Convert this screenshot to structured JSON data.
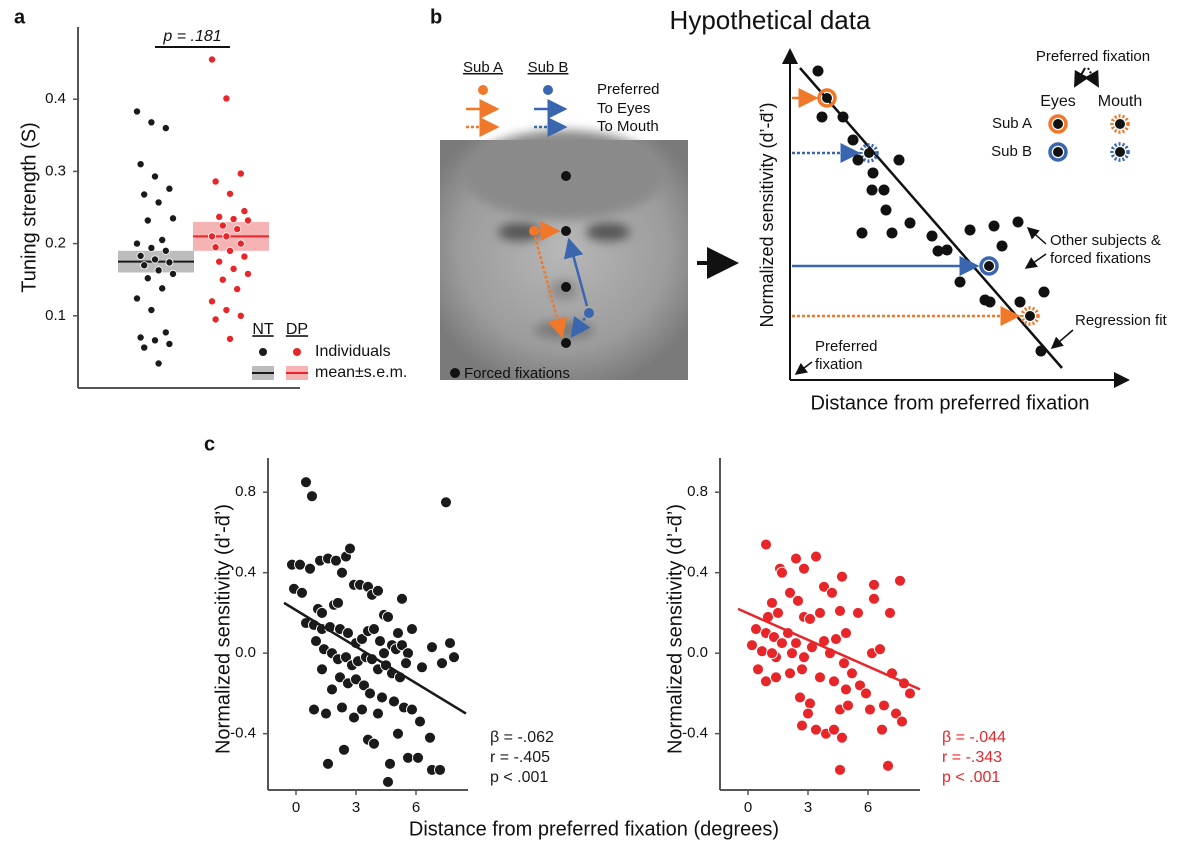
{
  "panel_labels": [
    "a",
    "b",
    "c"
  ],
  "chart_data": [
    {
      "type": "strip",
      "ylabel": "Tuning strength (S)",
      "ylim": [
        0,
        0.5
      ],
      "yticks": [
        0.1,
        0.2,
        0.3,
        0.4
      ],
      "annotation": "p = .181",
      "legend_items": [
        "Individuals",
        "mean±s.e.m."
      ],
      "series": [
        {
          "name": "NT",
          "color": "#1a1a1a",
          "band_color": "#bdbdbd",
          "mean": 0.175,
          "sem": 0.015,
          "values": [
            0.383,
            0.368,
            0.36,
            0.31,
            0.293,
            0.276,
            0.268,
            0.257,
            0.235,
            0.232,
            0.205,
            0.2,
            0.194,
            0.19,
            0.183,
            0.178,
            0.174,
            0.17,
            0.163,
            0.158,
            0.152,
            0.138,
            0.124,
            0.108,
            0.077,
            0.07,
            0.066,
            0.061,
            0.056,
            0.034
          ]
        },
        {
          "name": "DP",
          "color": "#e8262a",
          "band_color": "#f6b3b4",
          "mean": 0.21,
          "sem": 0.02,
          "values": [
            0.455,
            0.401,
            0.297,
            0.286,
            0.269,
            0.245,
            0.237,
            0.234,
            0.232,
            0.225,
            0.22,
            0.21,
            0.21,
            0.2,
            0.195,
            0.19,
            0.182,
            0.175,
            0.165,
            0.158,
            0.15,
            0.137,
            0.12,
            0.108,
            0.1,
            0.095,
            0.068
          ]
        }
      ]
    },
    {
      "type": "scatter",
      "ylabel": "Normalized sensitivity (d’-d̄’)",
      "color": "#1a1a1a",
      "xlim": [
        -1.4,
        8.6
      ],
      "xticks": [
        0,
        3,
        6
      ],
      "ylim": [
        -0.68,
        0.97
      ],
      "yticks": [
        -0.4,
        {
          "value": 0,
          "label": "0.0"
        },
        0.4,
        0.8
      ],
      "stats": [
        "β = -.062",
        "r = -.405",
        "p <  .001"
      ],
      "fit_x": [
        -0.6,
        8.5
      ],
      "fit_y": [
        0.25,
        -0.3
      ],
      "x": [
        0.5,
        0.8,
        -0.2,
        0.2,
        0.7,
        1.2,
        1.6,
        2,
        2.5,
        2.7,
        2.3,
        2.9,
        3.2,
        -0.1,
        0.3,
        1.1,
        1.3,
        1.9,
        2.1,
        3.6,
        3.8,
        4.1,
        4.4,
        4.6,
        5.3,
        5.1,
        0.5,
        0.9,
        1.3,
        1.7,
        2.2,
        2.6,
        3,
        3.3,
        3.6,
        3.9,
        4.2,
        4.4,
        4.8,
        5,
        5.3,
        5.6,
        1,
        1.4,
        1.8,
        2.1,
        2.5,
        2.8,
        3.1,
        3.5,
        3.8,
        4.1,
        4.5,
        4.8,
        5.2,
        5.5,
        2.2,
        2.6,
        3,
        3.4,
        3.7,
        4.3,
        4.9,
        5.4,
        1.3,
        1.8,
        0.9,
        1.5,
        2.3,
        2.9,
        3.3,
        4.1,
        5.8,
        6.2,
        5.1,
        3.6,
        3.9,
        2.4,
        6.7,
        5.6,
        4.7,
        6.1,
        6.8,
        7.2,
        4.6,
        6.8,
        7.3,
        7.7,
        7.9,
        6.3,
        7.5,
        1.6,
        5.8
      ],
      "values": [
        0.85,
        0.78,
        0.44,
        0.44,
        0.42,
        0.46,
        0.47,
        0.46,
        0.48,
        0.52,
        0.4,
        0.34,
        0.34,
        0.32,
        0.3,
        0.22,
        0.2,
        0.24,
        0.25,
        0.33,
        0.29,
        0.31,
        0.19,
        0.18,
        0.27,
        0.1,
        0.15,
        0.14,
        0.12,
        0.13,
        0.12,
        0.1,
        0.05,
        0.07,
        0.11,
        0.12,
        0.06,
        0,
        0.04,
        0.02,
        0.04,
        0,
        0.06,
        0.02,
        0,
        -0.03,
        -0.02,
        -0.06,
        -0.04,
        -0.02,
        -0.03,
        -0.08,
        -0.06,
        -0.1,
        -0.12,
        -0.05,
        -0.12,
        -0.15,
        -0.13,
        -0.16,
        -0.2,
        -0.22,
        -0.24,
        -0.27,
        -0.08,
        -0.18,
        -0.28,
        -0.3,
        -0.27,
        -0.32,
        -0.28,
        -0.3,
        -0.28,
        -0.34,
        -0.4,
        -0.43,
        -0.45,
        -0.48,
        -0.42,
        -0.52,
        -0.55,
        -0.52,
        -0.58,
        -0.58,
        -0.64,
        0.03,
        -0.05,
        0.05,
        -0.02,
        -0.07,
        0.75,
        -0.55,
        0.12
      ]
    },
    {
      "type": "scatter",
      "ylabel": "Normalized sensitivity (d’-d̄’)",
      "color": "#e8262a",
      "xlim": [
        -1.4,
        8.6
      ],
      "xticks": [
        0,
        3,
        6
      ],
      "ylim": [
        -0.68,
        0.97
      ],
      "yticks": [
        -0.4,
        {
          "value": 0,
          "label": "0.0"
        },
        0.4,
        0.8
      ],
      "stats": [
        "β = -.044",
        "r = -.343",
        "p <  .001"
      ],
      "fit_x": [
        -0.5,
        8.6
      ],
      "fit_y": [
        0.22,
        -0.18
      ],
      "x": [
        0.9,
        1.6,
        1.7,
        2.4,
        2.8,
        3.4,
        4.7,
        6.3,
        7.6,
        3.8,
        4.2,
        2.1,
        2.5,
        1.2,
        1,
        1.5,
        2.8,
        3.1,
        3.6,
        4.6,
        5.5,
        6.3,
        7.1,
        0.4,
        0.9,
        1.3,
        2,
        2.4,
        3.8,
        4.4,
        4.9,
        0.2,
        0.7,
        1.4,
        1.7,
        2.2,
        2.8,
        3.2,
        4.1,
        4.8,
        5.2,
        6.2,
        6.6,
        0.5,
        0.9,
        1.4,
        2.1,
        2.7,
        3.6,
        4.3,
        4.9,
        5.6,
        7.2,
        7.8,
        8.1,
        2.6,
        3.1,
        4.6,
        5,
        6.1,
        6.8,
        7.4,
        7.7,
        5.9,
        3.9,
        4.3,
        4.7,
        2.7,
        3.4,
        6.7,
        4.6,
        7,
        1.2,
        3
      ],
      "values": [
        0.54,
        0.42,
        0.4,
        0.47,
        0.42,
        0.48,
        0.38,
        0.34,
        0.36,
        0.33,
        0.3,
        0.3,
        0.26,
        0.25,
        0.18,
        0.2,
        0.18,
        0.17,
        0.2,
        0.21,
        0.2,
        0.27,
        0.2,
        0.12,
        0.1,
        0.08,
        0.1,
        0.05,
        0.06,
        0.07,
        0.1,
        0.04,
        0.01,
        -0.02,
        0.05,
        0,
        -0.02,
        0.03,
        0,
        -0.05,
        -0.1,
        0,
        0.02,
        -0.08,
        -0.14,
        -0.12,
        -0.1,
        -0.08,
        -0.12,
        -0.14,
        -0.18,
        -0.16,
        -0.1,
        -0.15,
        -0.2,
        -0.22,
        -0.25,
        -0.28,
        -0.26,
        -0.28,
        -0.26,
        -0.3,
        -0.34,
        -0.2,
        -0.4,
        -0.38,
        -0.42,
        -0.36,
        -0.38,
        -0.38,
        -0.58,
        -0.56,
        0,
        -0.3
      ]
    }
  ],
  "panel_c": {
    "xlabel": "Distance from preferred fixation (degrees)"
  },
  "diagram": {
    "sub_a": "Sub A",
    "sub_b": "Sub B",
    "preferred": "Preferred",
    "to_eyes": "To Eyes",
    "to_mouth": "To Mouth",
    "forced_fixations": "Forced fixations",
    "title": "Hypothetical data",
    "legend_title": "Preferred fixation",
    "eyes": "Eyes",
    "mouth": "Mouth",
    "legend_sub_a": "Sub A",
    "legend_sub_b": "Sub B",
    "other_1": "Other subjects &",
    "other_2": "forced fixations",
    "regression_fit": "Regression fit",
    "pref_1": "Preferred",
    "pref_2": "fixation",
    "ylabel": "Normalized sensitivity (d’-d̄’)",
    "xlabel": "Distance from preferred fixation"
  }
}
